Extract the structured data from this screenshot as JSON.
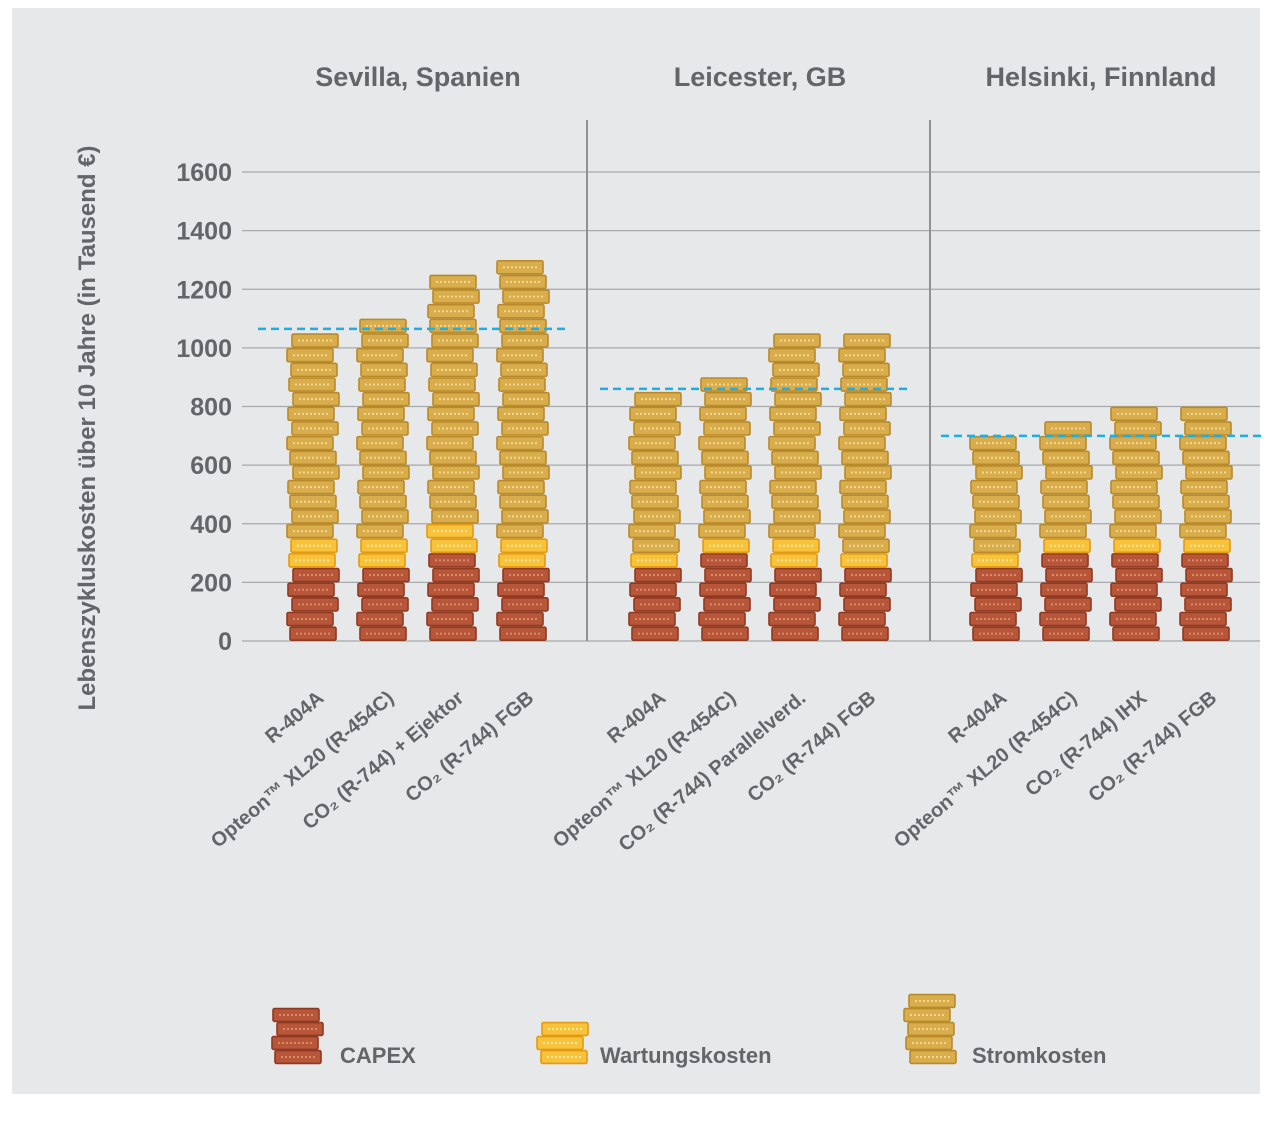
{
  "chart_data": {
    "type": "bar",
    "stacked": true,
    "ylabel": "Lebenszykluskosten über 10 Jahre (in Tausend €)",
    "ylim": [
      0,
      1600
    ],
    "yticks": [
      0,
      200,
      400,
      600,
      800,
      1000,
      1200,
      1400,
      1600
    ],
    "grid": true,
    "legend_position": "bottom",
    "series": [
      {
        "name": "CAPEX",
        "color": "#b8563a"
      },
      {
        "name": "Wartungskosten",
        "color": "#f7c23c"
      },
      {
        "name": "Stromkosten",
        "color": "#d9ad4c"
      }
    ],
    "groups": [
      {
        "name": "Sevilla, Spanien",
        "reference_line": 1065,
        "bars": [
          {
            "label": "R-404A",
            "values": [
              250,
              100,
              700
            ]
          },
          {
            "label": "Opteon™ XL20 (R-454C)",
            "values": [
              250,
              100,
              750
            ]
          },
          {
            "label": "CO₂ (R-744) + Ejektor",
            "values": [
              300,
              100,
              850
            ]
          },
          {
            "label": "CO₂ (R-744) FGB",
            "values": [
              250,
              100,
              950
            ]
          }
        ]
      },
      {
        "name": "Leicester, GB",
        "reference_line": 860,
        "bars": [
          {
            "label": "R-404A",
            "values": [
              250,
              50,
              550
            ]
          },
          {
            "label": "Opteon™ XL20 (R-454C)",
            "values": [
              300,
              50,
              550
            ]
          },
          {
            "label": "CO₂ (R-744) Parallelverd.",
            "values": [
              250,
              100,
              700
            ]
          },
          {
            "label": "CO₂ (R-744) FGB",
            "values": [
              250,
              50,
              750
            ]
          }
        ]
      },
      {
        "name": "Helsinki, Finnland",
        "reference_line": 700,
        "bars": [
          {
            "label": "R-404A",
            "values": [
              250,
              50,
              400
            ]
          },
          {
            "label": "Opteon™ XL20 (R-454C)",
            "values": [
              300,
              50,
              400
            ]
          },
          {
            "label": "CO₂ (R-744) IHX",
            "values": [
              300,
              50,
              450
            ]
          },
          {
            "label": "CO₂ (R-744) FGB",
            "values": [
              300,
              50,
              450
            ]
          }
        ]
      }
    ],
    "reference_line_color": "#1eaee4",
    "gridline_color": "#a7a9ac"
  }
}
